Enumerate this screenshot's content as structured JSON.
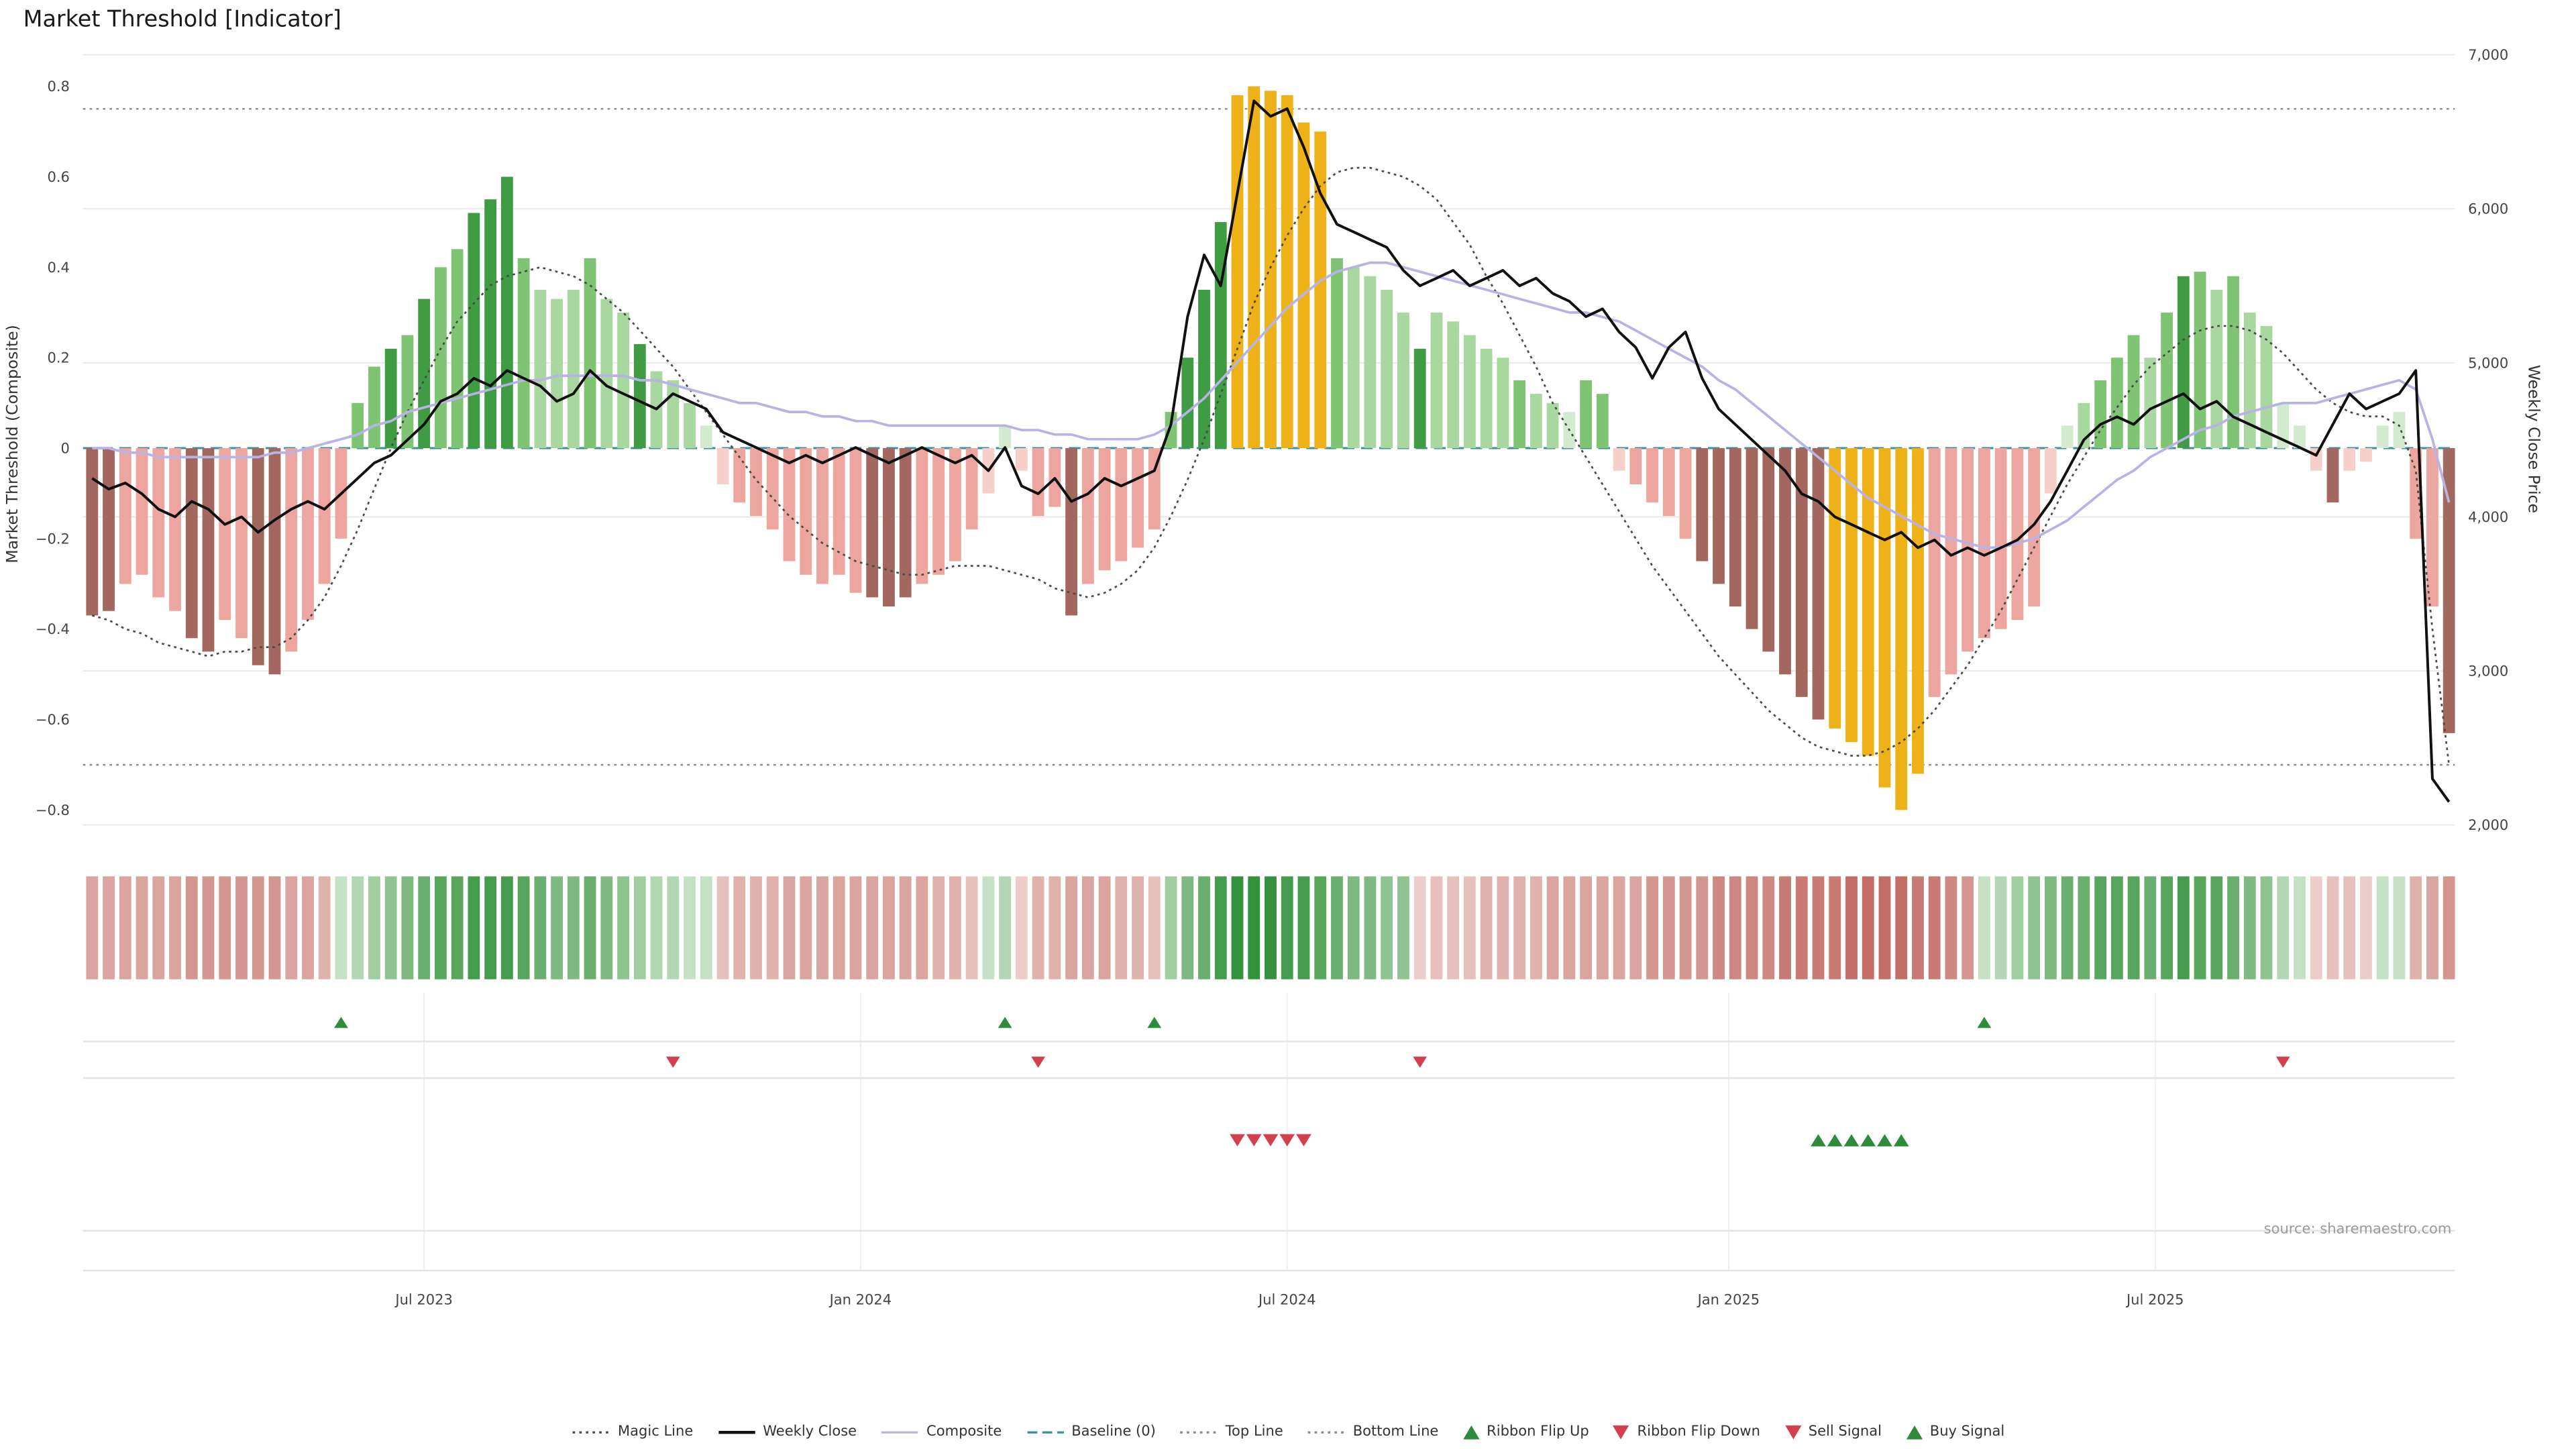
{
  "title": "Market Threshold [Indicator]",
  "source": "source: sharemaestro.com",
  "axes": {
    "left": {
      "title": "Market Threshold (Composite)",
      "ticks": [
        {
          "v": 0.8,
          "label": "0.8"
        },
        {
          "v": 0.6,
          "label": "0.6"
        },
        {
          "v": 0.4,
          "label": "0.4"
        },
        {
          "v": 0.2,
          "label": "0.2"
        },
        {
          "v": 0.0,
          "label": "0"
        },
        {
          "v": -0.2,
          "label": "−0.2"
        },
        {
          "v": -0.4,
          "label": "−0.4"
        },
        {
          "v": -0.6,
          "label": "−0.6"
        },
        {
          "v": -0.8,
          "label": "−0.8"
        }
      ]
    },
    "right": {
      "title": "Weekly Close Price",
      "ticks": [
        {
          "v": 7000,
          "label": "7,000"
        },
        {
          "v": 6000,
          "label": "6,000"
        },
        {
          "v": 5000,
          "label": "5,000"
        },
        {
          "v": 4000,
          "label": "4,000"
        },
        {
          "v": 3000,
          "label": "3,000"
        },
        {
          "v": 2000,
          "label": "2,000"
        }
      ]
    }
  },
  "palette": {
    "lp": "#eca69f",
    "pp": "#f6cfca",
    "dm": "#a2685f",
    "pg": "#d3ead0",
    "lg": "#a8d7a0",
    "mg": "#7ec473",
    "dg": "#3f9c42",
    "g": "#efb118",
    "weekly_close": "#111111",
    "composite": "#b7b3e6",
    "magic": "#4a4a4a",
    "baseline": "#3a8fa3",
    "ref_line": "#8a8a8a",
    "grid": "#e9e9e9",
    "signal_green": "#2e8b3c",
    "signal_red": "#d2404e"
  },
  "chart_data": {
    "type": "bar",
    "title": "Market Threshold [Indicator]",
    "ylabel": "Market Threshold (Composite)",
    "ylabel_right": "Weekly Close Price",
    "ylim": [
      -0.85,
      0.85
    ],
    "ylim_right": [
      2000,
      7000
    ],
    "weeks": 143,
    "x_ticks": [
      {
        "label": "Jul 2023",
        "week": 20.0
      },
      {
        "label": "Jan 2024",
        "week": 46.3
      },
      {
        "label": "Jul 2024",
        "week": 72.0
      },
      {
        "label": "Jan 2025",
        "week": 98.6
      },
      {
        "label": "Jul 2025",
        "week": 124.3
      }
    ],
    "reference_lines": {
      "top": 0.75,
      "bottom": -0.7,
      "baseline": 0
    },
    "threshold_bars": {
      "values": [
        -0.37,
        -0.36,
        -0.3,
        -0.28,
        -0.33,
        -0.36,
        -0.42,
        -0.45,
        -0.38,
        -0.42,
        -0.48,
        -0.5,
        -0.45,
        -0.38,
        -0.3,
        -0.2,
        0.1,
        0.18,
        0.22,
        0.25,
        0.33,
        0.4,
        0.44,
        0.52,
        0.55,
        0.6,
        0.42,
        0.35,
        0.33,
        0.35,
        0.42,
        0.33,
        0.3,
        0.23,
        0.17,
        0.15,
        0.1,
        0.05,
        -0.08,
        -0.12,
        -0.15,
        -0.18,
        -0.25,
        -0.28,
        -0.3,
        -0.28,
        -0.32,
        -0.33,
        -0.35,
        -0.33,
        -0.3,
        -0.28,
        -0.25,
        -0.18,
        -0.1,
        0.05,
        -0.05,
        -0.15,
        -0.13,
        -0.37,
        -0.3,
        -0.27,
        -0.25,
        -0.22,
        -0.18,
        0.08,
        0.2,
        0.35,
        0.5,
        0.78,
        0.8,
        0.79,
        0.78,
        0.72,
        0.7,
        0.42,
        0.4,
        0.38,
        0.35,
        0.3,
        0.22,
        0.3,
        0.28,
        0.25,
        0.22,
        0.2,
        0.15,
        0.12,
        0.1,
        0.08,
        0.15,
        0.12,
        -0.05,
        -0.08,
        -0.12,
        -0.15,
        -0.2,
        -0.25,
        -0.3,
        -0.35,
        -0.4,
        -0.45,
        -0.5,
        -0.55,
        -0.6,
        -0.62,
        -0.65,
        -0.68,
        -0.75,
        -0.8,
        -0.72,
        -0.55,
        -0.5,
        -0.45,
        -0.42,
        -0.4,
        -0.38,
        -0.35,
        -0.1,
        0.05,
        0.1,
        0.15,
        0.2,
        0.25,
        0.2,
        0.3,
        0.38,
        0.39,
        0.35,
        0.38,
        0.3,
        0.27,
        0.1,
        0.05,
        -0.05,
        -0.12,
        -0.05,
        -0.03,
        0.05,
        0.08,
        -0.2,
        -0.35,
        -0.63
      ],
      "colors": [
        "dm",
        "dm",
        "lp",
        "lp",
        "lp",
        "lp",
        "dm",
        "dm",
        "lp",
        "lp",
        "dm",
        "dm",
        "lp",
        "lp",
        "lp",
        "lp",
        "mg",
        "mg",
        "dg",
        "mg",
        "dg",
        "mg",
        "mg",
        "dg",
        "dg",
        "dg",
        "mg",
        "lg",
        "lg",
        "lg",
        "mg",
        "lg",
        "lg",
        "dg",
        "lg",
        "lg",
        "lg",
        "pg",
        "pp",
        "lp",
        "lp",
        "lp",
        "lp",
        "lp",
        "lp",
        "lp",
        "lp",
        "dm",
        "dm",
        "dm",
        "lp",
        "lp",
        "lp",
        "lp",
        "pp",
        "pg",
        "pp",
        "lp",
        "lp",
        "dm",
        "lp",
        "lp",
        "lp",
        "lp",
        "lp",
        "mg",
        "dg",
        "dg",
        "dg",
        "g",
        "g",
        "g",
        "g",
        "g",
        "g",
        "mg",
        "lg",
        "lg",
        "lg",
        "lg",
        "dg",
        "lg",
        "lg",
        "lg",
        "lg",
        "lg",
        "mg",
        "lg",
        "lg",
        "pg",
        "mg",
        "mg",
        "pp",
        "lp",
        "lp",
        "lp",
        "lp",
        "dm",
        "dm",
        "dm",
        "dm",
        "dm",
        "dm",
        "dm",
        "dm",
        "g",
        "g",
        "g",
        "g",
        "g",
        "g",
        "lp",
        "lp",
        "lp",
        "lp",
        "lp",
        "lp",
        "lp",
        "pp",
        "pg",
        "lg",
        "mg",
        "mg",
        "mg",
        "lg",
        "mg",
        "dg",
        "mg",
        "lg",
        "mg",
        "lg",
        "lg",
        "pg",
        "pg",
        "pp",
        "dm",
        "pp",
        "pp",
        "pg",
        "pg",
        "lp",
        "lp",
        "dm"
      ]
    },
    "series": [
      {
        "name": "Weekly Close",
        "axis": "right",
        "style": "solid",
        "values": [
          4250,
          4180,
          4220,
          4150,
          4050,
          4000,
          4100,
          4050,
          3950,
          4000,
          3900,
          3980,
          4050,
          4100,
          4050,
          4150,
          4250,
          4350,
          4400,
          4500,
          4600,
          4750,
          4800,
          4900,
          4850,
          4950,
          4900,
          4850,
          4750,
          4800,
          4950,
          4850,
          4800,
          4750,
          4700,
          4800,
          4750,
          4700,
          4550,
          4500,
          4450,
          4400,
          4350,
          4400,
          4350,
          4400,
          4450,
          4400,
          4350,
          4400,
          4450,
          4400,
          4350,
          4400,
          4300,
          4450,
          4200,
          4150,
          4250,
          4100,
          4150,
          4250,
          4200,
          4250,
          4300,
          4600,
          5300,
          5700,
          5500,
          6100,
          6700,
          6600,
          6650,
          6400,
          6100,
          5900,
          5850,
          5800,
          5750,
          5600,
          5500,
          5550,
          5600,
          5500,
          5550,
          5600,
          5500,
          5550,
          5450,
          5400,
          5300,
          5350,
          5200,
          5100,
          4900,
          5100,
          5200,
          4900,
          4700,
          4600,
          4500,
          4400,
          4300,
          4150,
          4100,
          4000,
          3950,
          3900,
          3850,
          3900,
          3800,
          3850,
          3750,
          3800,
          3750,
          3800,
          3850,
          3950,
          4100,
          4300,
          4500,
          4600,
          4650,
          4600,
          4700,
          4750,
          4800,
          4700,
          4750,
          4650,
          4600,
          4550,
          4500,
          4450,
          4400,
          4600,
          4800,
          4700,
          4750,
          4800,
          4950,
          2300,
          2150
        ]
      },
      {
        "name": "Composite",
        "axis": "left",
        "style": "solid",
        "values": [
          0.0,
          0.0,
          -0.01,
          -0.01,
          -0.02,
          -0.02,
          -0.02,
          -0.02,
          -0.02,
          -0.02,
          -0.02,
          -0.01,
          -0.01,
          0.0,
          0.01,
          0.02,
          0.03,
          0.05,
          0.06,
          0.08,
          0.09,
          0.1,
          0.11,
          0.12,
          0.13,
          0.14,
          0.15,
          0.15,
          0.16,
          0.16,
          0.16,
          0.16,
          0.16,
          0.15,
          0.15,
          0.14,
          0.13,
          0.12,
          0.11,
          0.1,
          0.1,
          0.09,
          0.08,
          0.08,
          0.07,
          0.07,
          0.06,
          0.06,
          0.05,
          0.05,
          0.05,
          0.05,
          0.05,
          0.05,
          0.05,
          0.05,
          0.04,
          0.04,
          0.03,
          0.03,
          0.02,
          0.02,
          0.02,
          0.02,
          0.03,
          0.05,
          0.08,
          0.11,
          0.15,
          0.19,
          0.23,
          0.27,
          0.31,
          0.34,
          0.37,
          0.39,
          0.4,
          0.41,
          0.41,
          0.4,
          0.39,
          0.38,
          0.37,
          0.36,
          0.35,
          0.34,
          0.33,
          0.32,
          0.31,
          0.3,
          0.3,
          0.29,
          0.28,
          0.26,
          0.24,
          0.22,
          0.2,
          0.18,
          0.15,
          0.13,
          0.1,
          0.07,
          0.04,
          0.01,
          -0.02,
          -0.05,
          -0.08,
          -0.11,
          -0.13,
          -0.15,
          -0.17,
          -0.19,
          -0.2,
          -0.21,
          -0.22,
          -0.22,
          -0.21,
          -0.2,
          -0.18,
          -0.16,
          -0.13,
          -0.1,
          -0.07,
          -0.05,
          -0.02,
          0.0,
          0.02,
          0.04,
          0.05,
          0.07,
          0.08,
          0.09,
          0.1,
          0.1,
          0.1,
          0.11,
          0.12,
          0.13,
          0.14,
          0.15,
          0.13,
          0.02,
          -0.12
        ]
      },
      {
        "name": "Magic Line",
        "axis": "left",
        "style": "dotted",
        "values": [
          -0.37,
          -0.38,
          -0.4,
          -0.41,
          -0.43,
          -0.44,
          -0.45,
          -0.46,
          -0.45,
          -0.45,
          -0.44,
          -0.44,
          -0.42,
          -0.38,
          -0.33,
          -0.26,
          -0.18,
          -0.09,
          0.0,
          0.08,
          0.15,
          0.22,
          0.28,
          0.32,
          0.36,
          0.38,
          0.39,
          0.4,
          0.39,
          0.38,
          0.36,
          0.33,
          0.3,
          0.26,
          0.22,
          0.18,
          0.13,
          0.08,
          0.03,
          -0.02,
          -0.07,
          -0.11,
          -0.15,
          -0.18,
          -0.21,
          -0.23,
          -0.25,
          -0.26,
          -0.27,
          -0.28,
          -0.28,
          -0.27,
          -0.26,
          -0.26,
          -0.26,
          -0.27,
          -0.28,
          -0.29,
          -0.31,
          -0.32,
          -0.33,
          -0.32,
          -0.3,
          -0.27,
          -0.22,
          -0.15,
          -0.07,
          0.02,
          0.12,
          0.22,
          0.32,
          0.4,
          0.47,
          0.53,
          0.58,
          0.61,
          0.62,
          0.62,
          0.61,
          0.6,
          0.58,
          0.55,
          0.5,
          0.45,
          0.38,
          0.32,
          0.25,
          0.18,
          0.1,
          0.04,
          -0.02,
          -0.08,
          -0.14,
          -0.2,
          -0.26,
          -0.31,
          -0.36,
          -0.41,
          -0.46,
          -0.5,
          -0.54,
          -0.58,
          -0.61,
          -0.64,
          -0.66,
          -0.67,
          -0.68,
          -0.68,
          -0.67,
          -0.65,
          -0.62,
          -0.58,
          -0.53,
          -0.48,
          -0.42,
          -0.36,
          -0.29,
          -0.22,
          -0.15,
          -0.08,
          -0.02,
          0.04,
          0.09,
          0.14,
          0.18,
          0.21,
          0.24,
          0.26,
          0.27,
          0.27,
          0.26,
          0.24,
          0.21,
          0.17,
          0.13,
          0.1,
          0.08,
          0.07,
          0.07,
          0.05,
          -0.05,
          -0.4,
          -0.7
        ]
      }
    ],
    "ribbon": [
      -0.5,
      -0.5,
      -0.5,
      -0.5,
      -0.5,
      -0.5,
      -0.6,
      -0.6,
      -0.6,
      -0.6,
      -0.6,
      -0.6,
      -0.5,
      -0.5,
      -0.4,
      0.2,
      0.3,
      0.4,
      0.5,
      0.6,
      0.7,
      0.8,
      0.8,
      0.9,
      0.9,
      0.9,
      0.8,
      0.7,
      0.6,
      0.6,
      0.7,
      0.6,
      0.5,
      0.4,
      0.3,
      0.3,
      0.2,
      0.2,
      -0.3,
      -0.4,
      -0.4,
      -0.4,
      -0.5,
      -0.5,
      -0.5,
      -0.5,
      -0.5,
      -0.5,
      -0.5,
      -0.5,
      -0.5,
      -0.4,
      -0.4,
      -0.3,
      0.2,
      0.3,
      -0.2,
      -0.4,
      -0.4,
      -0.5,
      -0.5,
      -0.5,
      -0.4,
      -0.4,
      -0.3,
      0.4,
      0.6,
      0.7,
      0.9,
      1.0,
      1.0,
      1.0,
      0.9,
      0.9,
      0.8,
      0.7,
      0.6,
      0.6,
      0.5,
      0.5,
      -0.2,
      -0.3,
      -0.3,
      -0.3,
      -0.4,
      -0.4,
      -0.4,
      -0.4,
      -0.5,
      -0.5,
      -0.5,
      -0.5,
      -0.5,
      -0.5,
      -0.6,
      -0.6,
      -0.6,
      -0.6,
      -0.7,
      -0.7,
      -0.7,
      -0.7,
      -0.8,
      -0.8,
      -0.8,
      -0.8,
      -0.9,
      -0.9,
      -0.9,
      -0.9,
      -0.8,
      -0.8,
      -0.7,
      -0.6,
      0.2,
      0.3,
      0.4,
      0.5,
      0.6,
      0.7,
      0.7,
      0.8,
      0.8,
      0.8,
      0.7,
      0.8,
      0.9,
      0.8,
      0.8,
      0.7,
      0.6,
      0.5,
      0.3,
      0.2,
      -0.2,
      -0.3,
      -0.3,
      -0.2,
      0.2,
      0.2,
      -0.4,
      -0.5,
      -0.6
    ],
    "signals": {
      "ribbon_flip_up_weeks": [
        15,
        55,
        64,
        114
      ],
      "ribbon_flip_down_weeks": [
        35,
        57,
        80,
        132
      ],
      "sell_signal_weeks": [
        69,
        70,
        71,
        72,
        73
      ],
      "buy_signal_weeks": [
        104,
        105,
        106,
        107,
        108,
        109
      ]
    }
  },
  "legend": [
    {
      "label": "Magic Line",
      "type": "dotted",
      "color": "#4a4a4a"
    },
    {
      "label": "Weekly Close",
      "type": "solid",
      "color": "#111111"
    },
    {
      "label": "Composite",
      "type": "solid",
      "color": "#b7b3e6"
    },
    {
      "label": "Baseline (0)",
      "type": "dashed",
      "color": "#3a8fa3"
    },
    {
      "label": "Top Line",
      "type": "dotted",
      "color": "#8a8a8a"
    },
    {
      "label": "Bottom Line",
      "type": "dotted",
      "color": "#8a8a8a"
    },
    {
      "label": "Ribbon Flip Up",
      "type": "triangle-up",
      "color": "#2e8b3c"
    },
    {
      "label": "Ribbon Flip Down",
      "type": "triangle-down",
      "color": "#d2404e"
    },
    {
      "label": "Sell Signal",
      "type": "triangle-down",
      "color": "#d2404e"
    },
    {
      "label": "Buy Signal",
      "type": "triangle-up",
      "color": "#2e8b3c"
    }
  ]
}
